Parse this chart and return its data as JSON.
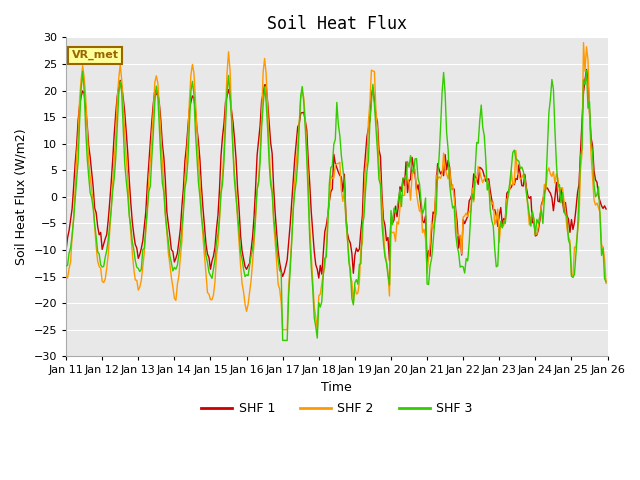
{
  "title": "Soil Heat Flux",
  "xlabel": "Time",
  "ylabel": "Soil Heat Flux (W/m2)",
  "ylim": [
    -30,
    30
  ],
  "xlim": [
    0,
    360
  ],
  "yticks": [
    -30,
    -25,
    -20,
    -15,
    -10,
    -5,
    0,
    5,
    10,
    15,
    20,
    25,
    30
  ],
  "xtick_labels": [
    "Jan 11",
    "Jan 12",
    "Jan 13",
    "Jan 14",
    "Jan 15",
    "Jan 16",
    "Jan 17",
    "Jan 18",
    "Jan 19",
    "Jan 20",
    "Jan 21",
    "Jan 22",
    "Jan 23",
    "Jan 24",
    "Jan 25",
    "Jan 26"
  ],
  "xtick_positions": [
    0,
    24,
    48,
    72,
    96,
    120,
    144,
    168,
    192,
    216,
    240,
    264,
    288,
    312,
    336,
    360
  ],
  "colors": {
    "SHF 1": "#cc0000",
    "SHF 2": "#ff9900",
    "SHF 3": "#33cc00"
  },
  "legend_labels": [
    "SHF 1",
    "SHF 2",
    "SHF 3"
  ],
  "fig_facecolor": "#ffffff",
  "plot_bg_color": "#e8e8e8",
  "grid_color": "#ffffff",
  "annotation_text": "VR_met",
  "annotation_box_color": "#ffff99",
  "annotation_border_color": "#996600",
  "linewidth": 1.0,
  "title_fontsize": 12,
  "axis_label_fontsize": 9,
  "tick_fontsize": 8
}
